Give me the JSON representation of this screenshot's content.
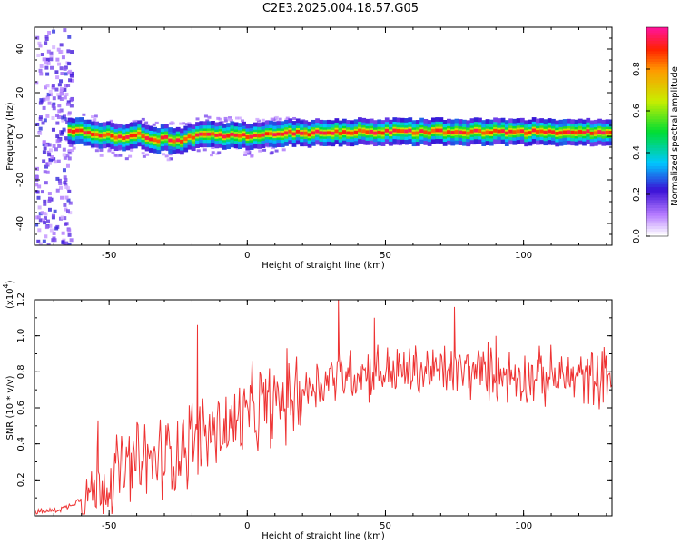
{
  "title": "C2E3.2025.004.18.57.G05",
  "chart_data": [
    {
      "type": "heatmap",
      "xlabel": "Height of straight line (km)",
      "ylabel": "Frequency (Hz)",
      "xlim": [
        -77,
        132
      ],
      "ylim": [
        -50,
        50
      ],
      "xticks": [
        -50,
        0,
        50,
        100
      ],
      "yticks": [
        -40,
        -20,
        0,
        20,
        40
      ],
      "colorbar": {
        "label": "Normalized spectral amplitude",
        "range": [
          0,
          1
        ],
        "ticks": [
          "0.0",
          "0.2",
          "0.4",
          "0.6",
          "0.8"
        ]
      },
      "ridge": {
        "description_values": "peak frequency vs height",
        "x": [
          -75,
          -65,
          -60,
          -55,
          -50,
          -45,
          -40,
          -35,
          -30,
          -25,
          -20,
          -15,
          -10,
          -5,
          0,
          5,
          10,
          15,
          20,
          25,
          30,
          40,
          50,
          60,
          70,
          80,
          90,
          100,
          110,
          120,
          130
        ],
        "y": [
          2,
          3,
          2,
          1,
          0,
          -1,
          1,
          -2,
          -1,
          -2,
          0,
          1,
          0,
          1,
          0,
          1,
          1,
          2,
          1,
          2,
          2,
          2,
          2,
          2,
          2,
          2,
          2,
          2,
          2,
          2,
          2
        ]
      }
    },
    {
      "type": "line",
      "xlabel": "Height of straight line (km)",
      "ylabel": "SNR (10 * v/v)",
      "yscale_label": "(x10",
      "yscale_exp": "4",
      "yscale_close": ")",
      "xlim": [
        -77,
        132
      ],
      "ylim": [
        0,
        1.2
      ],
      "xticks": [
        -50,
        0,
        50,
        100
      ],
      "yticks": [
        "0.2",
        "0.4",
        "0.6",
        "0.8",
        "1.0",
        "1.2"
      ],
      "series": [
        {
          "color": "#ee3333",
          "x": [
            -77,
            -70,
            -65,
            -60,
            -55,
            -50,
            -45,
            -40,
            -35,
            -30,
            -25,
            -20,
            -15,
            -10,
            -5,
            0,
            5,
            10,
            15,
            20,
            25,
            30,
            35,
            40,
            45,
            50,
            55,
            60,
            65,
            70,
            75,
            80,
            85,
            90,
            95,
            100,
            105,
            110,
            115,
            120,
            125,
            130
          ],
          "y": [
            0.02,
            0.03,
            0.05,
            0.1,
            0.15,
            0.2,
            0.25,
            0.28,
            0.3,
            0.32,
            0.38,
            0.42,
            0.45,
            0.48,
            0.5,
            0.55,
            0.6,
            0.62,
            0.66,
            0.7,
            0.73,
            0.77,
            0.79,
            0.8,
            0.8,
            0.8,
            0.8,
            0.8,
            0.8,
            0.8,
            0.81,
            0.8,
            0.8,
            0.79,
            0.78,
            0.78,
            0.77,
            0.77,
            0.77,
            0.77,
            0.77,
            0.78
          ]
        }
      ],
      "spikes": {
        "x": [
          -54,
          -18,
          33,
          46,
          75,
          90
        ],
        "y": [
          0.53,
          1.06,
          1.2,
          1.1,
          1.16,
          1.0
        ]
      }
    }
  ]
}
